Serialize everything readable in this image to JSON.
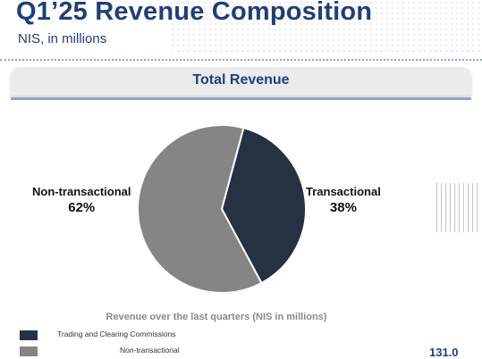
{
  "header": {
    "title": "Q1’25 Revenue Composition",
    "subtitle": "NIS, in millions"
  },
  "section": {
    "title": "Total Revenue"
  },
  "chart_data": {
    "type": "pie",
    "title": "Total Revenue",
    "slices": [
      {
        "label": "Transactional",
        "value": 38,
        "value_label": "38%",
        "color": "#263142"
      },
      {
        "label": "Non-transactional",
        "value": 62,
        "value_label": "62%",
        "color": "#858585"
      }
    ]
  },
  "bottom": {
    "caption": "Revenue over the last quarters (NIS in millions)",
    "legend": [
      {
        "label": "Trading and Clearing Commissions",
        "color": "#263142"
      },
      {
        "label": "Non-transactional",
        "color": "#858585"
      }
    ],
    "value": "131.0"
  }
}
